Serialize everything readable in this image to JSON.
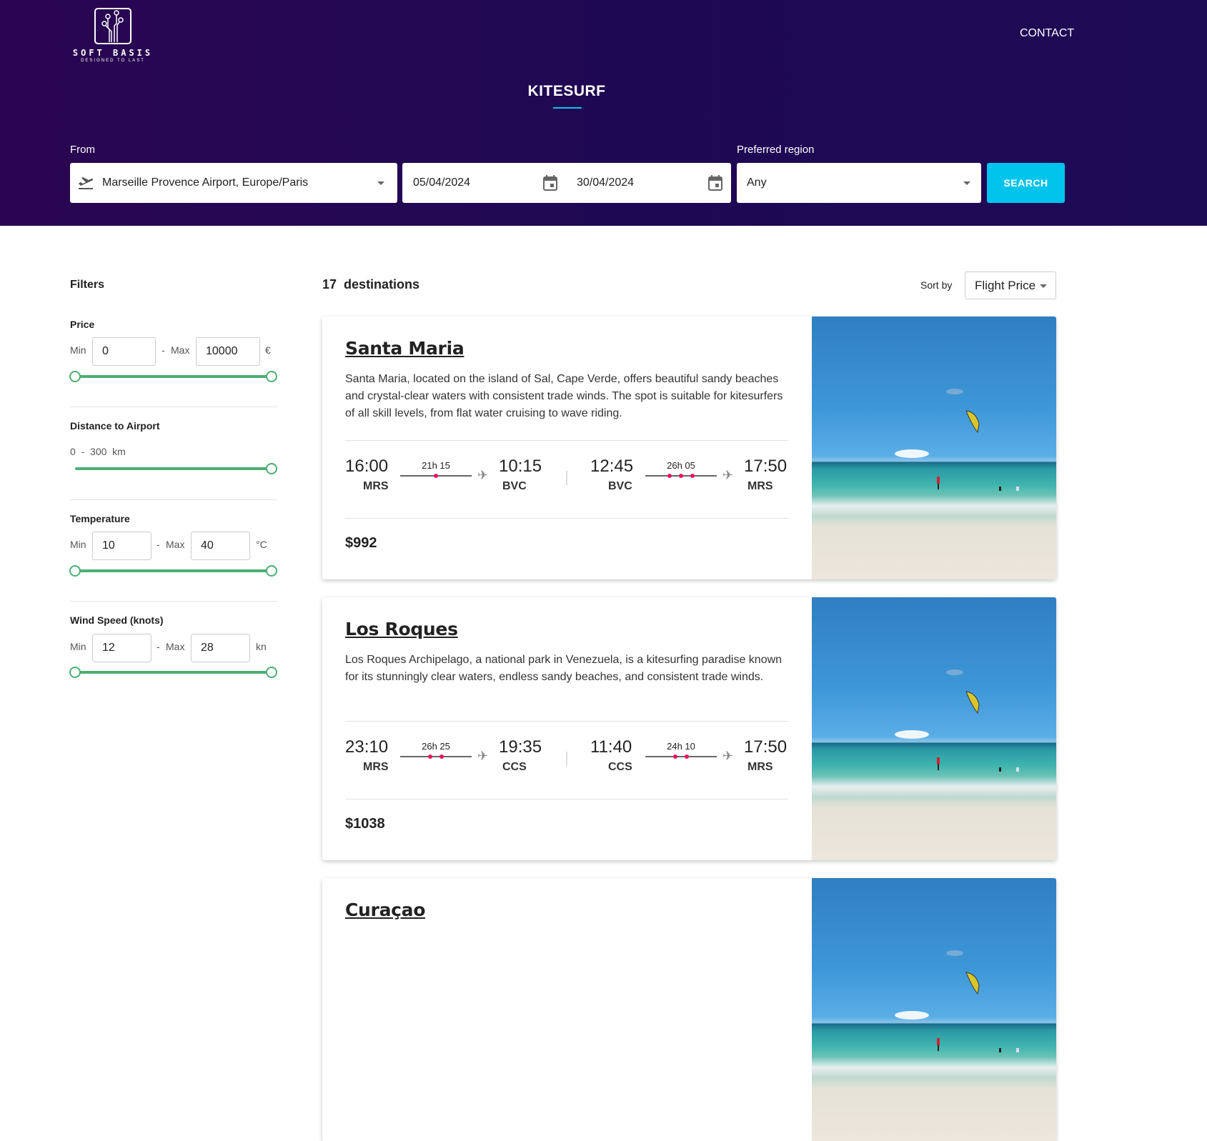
{
  "header": {
    "logo_text": "SOFT BASIS",
    "logo_tagline": "DESIGNED TO LAST",
    "contact": "CONTACT",
    "title": "KITESURF",
    "accent": "#00c4ee"
  },
  "search": {
    "from_label": "From",
    "from_value": "Marseille Provence Airport, Europe/Paris",
    "date_from": "05/04/2024",
    "date_to": "30/04/2024",
    "region_label": "Preferred region",
    "region_value": "Any",
    "search_button": "SEARCH"
  },
  "filters": {
    "title": "Filters",
    "price": {
      "label": "Price",
      "min_label": "Min",
      "max_label": "Max",
      "sep": "-",
      "min": "0",
      "max": "10000",
      "unit": "€"
    },
    "distance": {
      "label": "Distance to Airport",
      "min": "0",
      "sep": "-",
      "max": "300",
      "unit": "km"
    },
    "temperature": {
      "label": "Temperature",
      "min_label": "Min",
      "max_label": "Max",
      "sep": "-",
      "min": "10",
      "max": "40",
      "unit": "°C"
    },
    "wind": {
      "label": "Wind Speed (knots)",
      "min_label": "Min",
      "max_label": "Max",
      "sep": "-",
      "min": "12",
      "max": "28",
      "unit": "kn"
    }
  },
  "results": {
    "count": "17",
    "count_label": "destinations",
    "sort_label": "Sort by",
    "sort_value": "Flight Price"
  },
  "cards": [
    {
      "name": "Santa Maria",
      "description": "Santa Maria, located on the island of Sal, Cape Verde, offers beautiful sandy beaches and crystal-clear waters with consistent trade winds. The spot is suitable for kitesurfers of all skill levels, from flat water cruising to wave riding.",
      "price": "$992",
      "outbound": {
        "dep_time": "16:00",
        "dep": "MRS",
        "duration": "21h 15",
        "stops": 1,
        "arr_time": "10:15",
        "arr": "BVC"
      },
      "return": {
        "dep_time": "12:45",
        "dep": "BVC",
        "duration": "26h 05",
        "stops": 3,
        "arr_time": "17:50",
        "arr": "MRS"
      }
    },
    {
      "name": "Los Roques",
      "description": "Los Roques Archipelago, a national park in Venezuela, is a kitesurfing paradise known for its stunningly clear waters, endless sandy beaches, and consistent trade winds.",
      "price": "$1038",
      "outbound": {
        "dep_time": "23:10",
        "dep": "MRS",
        "duration": "26h 25",
        "stops": 2,
        "arr_time": "19:35",
        "arr": "CCS"
      },
      "return": {
        "dep_time": "11:40",
        "dep": "CCS",
        "duration": "24h 10",
        "stops": 2,
        "arr_time": "17:50",
        "arr": "MRS"
      }
    },
    {
      "name": "Curaçao"
    }
  ]
}
